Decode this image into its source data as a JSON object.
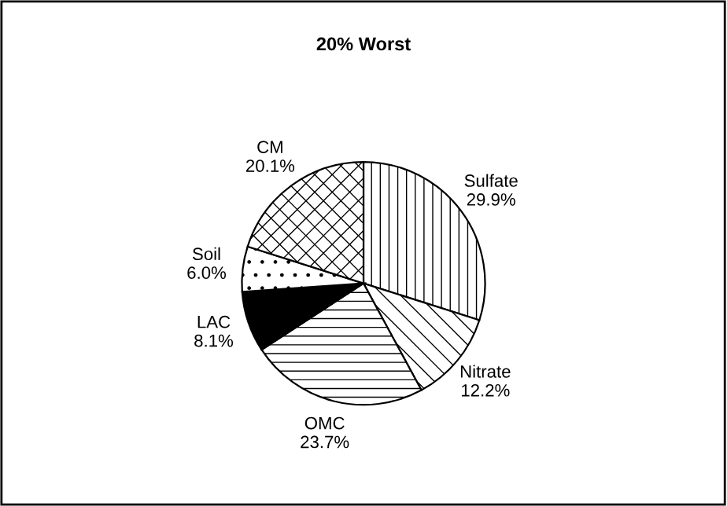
{
  "chart_data": {
    "type": "pie",
    "title": "20% Worst",
    "categories": [
      "Sulfate",
      "Nitrate",
      "OMC",
      "LAC",
      "Soil",
      "CM"
    ],
    "values": [
      29.9,
      12.2,
      23.7,
      8.1,
      6.0,
      20.1
    ],
    "value_labels": [
      "29.9%",
      "12.2%",
      "23.7%",
      "8.1%",
      "6.0%",
      "20.1%"
    ],
    "colors": [
      "#ffffff",
      "#ffffff",
      "#ffffff",
      "#000000",
      "#ffffff",
      "#ffffff"
    ]
  }
}
